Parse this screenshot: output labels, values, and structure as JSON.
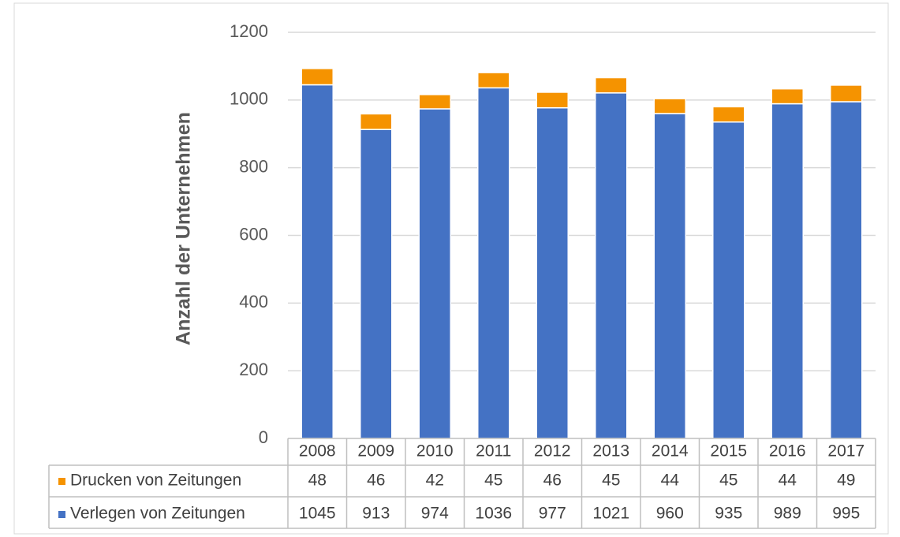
{
  "chart_data": {
    "type": "stacked_bar",
    "y_axis_label": "Anzahl der Unternehmen",
    "categories": [
      "2008",
      "2009",
      "2010",
      "2011",
      "2012",
      "2013",
      "2014",
      "2015",
      "2016",
      "2017"
    ],
    "series": [
      {
        "name": "Drucken von Zeitungen",
        "color": "#f59300",
        "values": [
          48,
          46,
          42,
          45,
          46,
          45,
          44,
          45,
          44,
          49
        ]
      },
      {
        "name": "Verlegen von Zeitungen",
        "color": "#4472c4",
        "values": [
          1045,
          913,
          974,
          1036,
          977,
          1021,
          960,
          935,
          989,
          995
        ]
      }
    ],
    "ylim": [
      0,
      1200
    ],
    "yticks": [
      0,
      200,
      400,
      600,
      800,
      1000,
      1200
    ],
    "grid": true
  }
}
